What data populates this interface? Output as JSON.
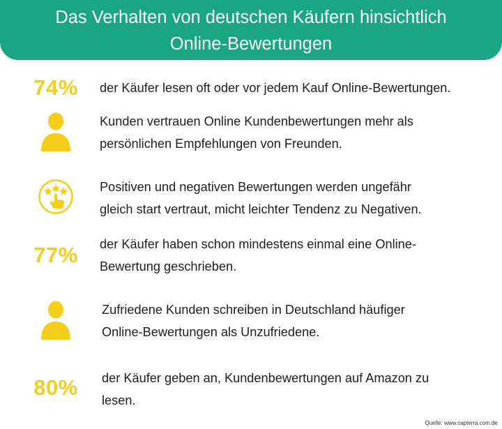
{
  "header": {
    "title_line1": "Das Verhalten von deutschen Käufern hinsichtlich",
    "title_line2": "Online-Bewertungen"
  },
  "facts": [
    {
      "stat": "74%",
      "icon": null,
      "lines": [
        "der Käufer lesen oft oder vor jedem Kauf Online-Bewertungen."
      ]
    },
    {
      "stat": null,
      "icon": "person-icon",
      "lines": [
        "Kunden vertrauen Online Kundenbewertungen mehr als",
        "persönlichen Empfehlungen von Freunden."
      ]
    },
    {
      "stat": null,
      "icon": "rating-hand-icon",
      "lines": [
        "Positiven und negativen Bewertungen werden ungefähr",
        "gleich start vertraut, micht leichter Tendenz zu Negativen."
      ]
    },
    {
      "stat": "77%",
      "icon": null,
      "lines": [
        "der Käufer haben schon mindestens einmal eine Online-",
        "Bewertung geschrieben."
      ]
    },
    {
      "stat": null,
      "icon": "person-icon",
      "lines": [
        "Zufriedene Kunden schreiben in Deutschland häufiger",
        "Online-Bewertungen als Unzufriedene."
      ]
    },
    {
      "stat": "80%",
      "icon": null,
      "lines": [
        "der Käufer geben an, Kundenbewertungen auf Amazon zu",
        "lesen."
      ]
    }
  ],
  "source": "Quelle: www.capterra.com.de",
  "colors": {
    "header": "#1aa584",
    "accent": "#f5cd1b",
    "text": "#1e1e1e"
  }
}
